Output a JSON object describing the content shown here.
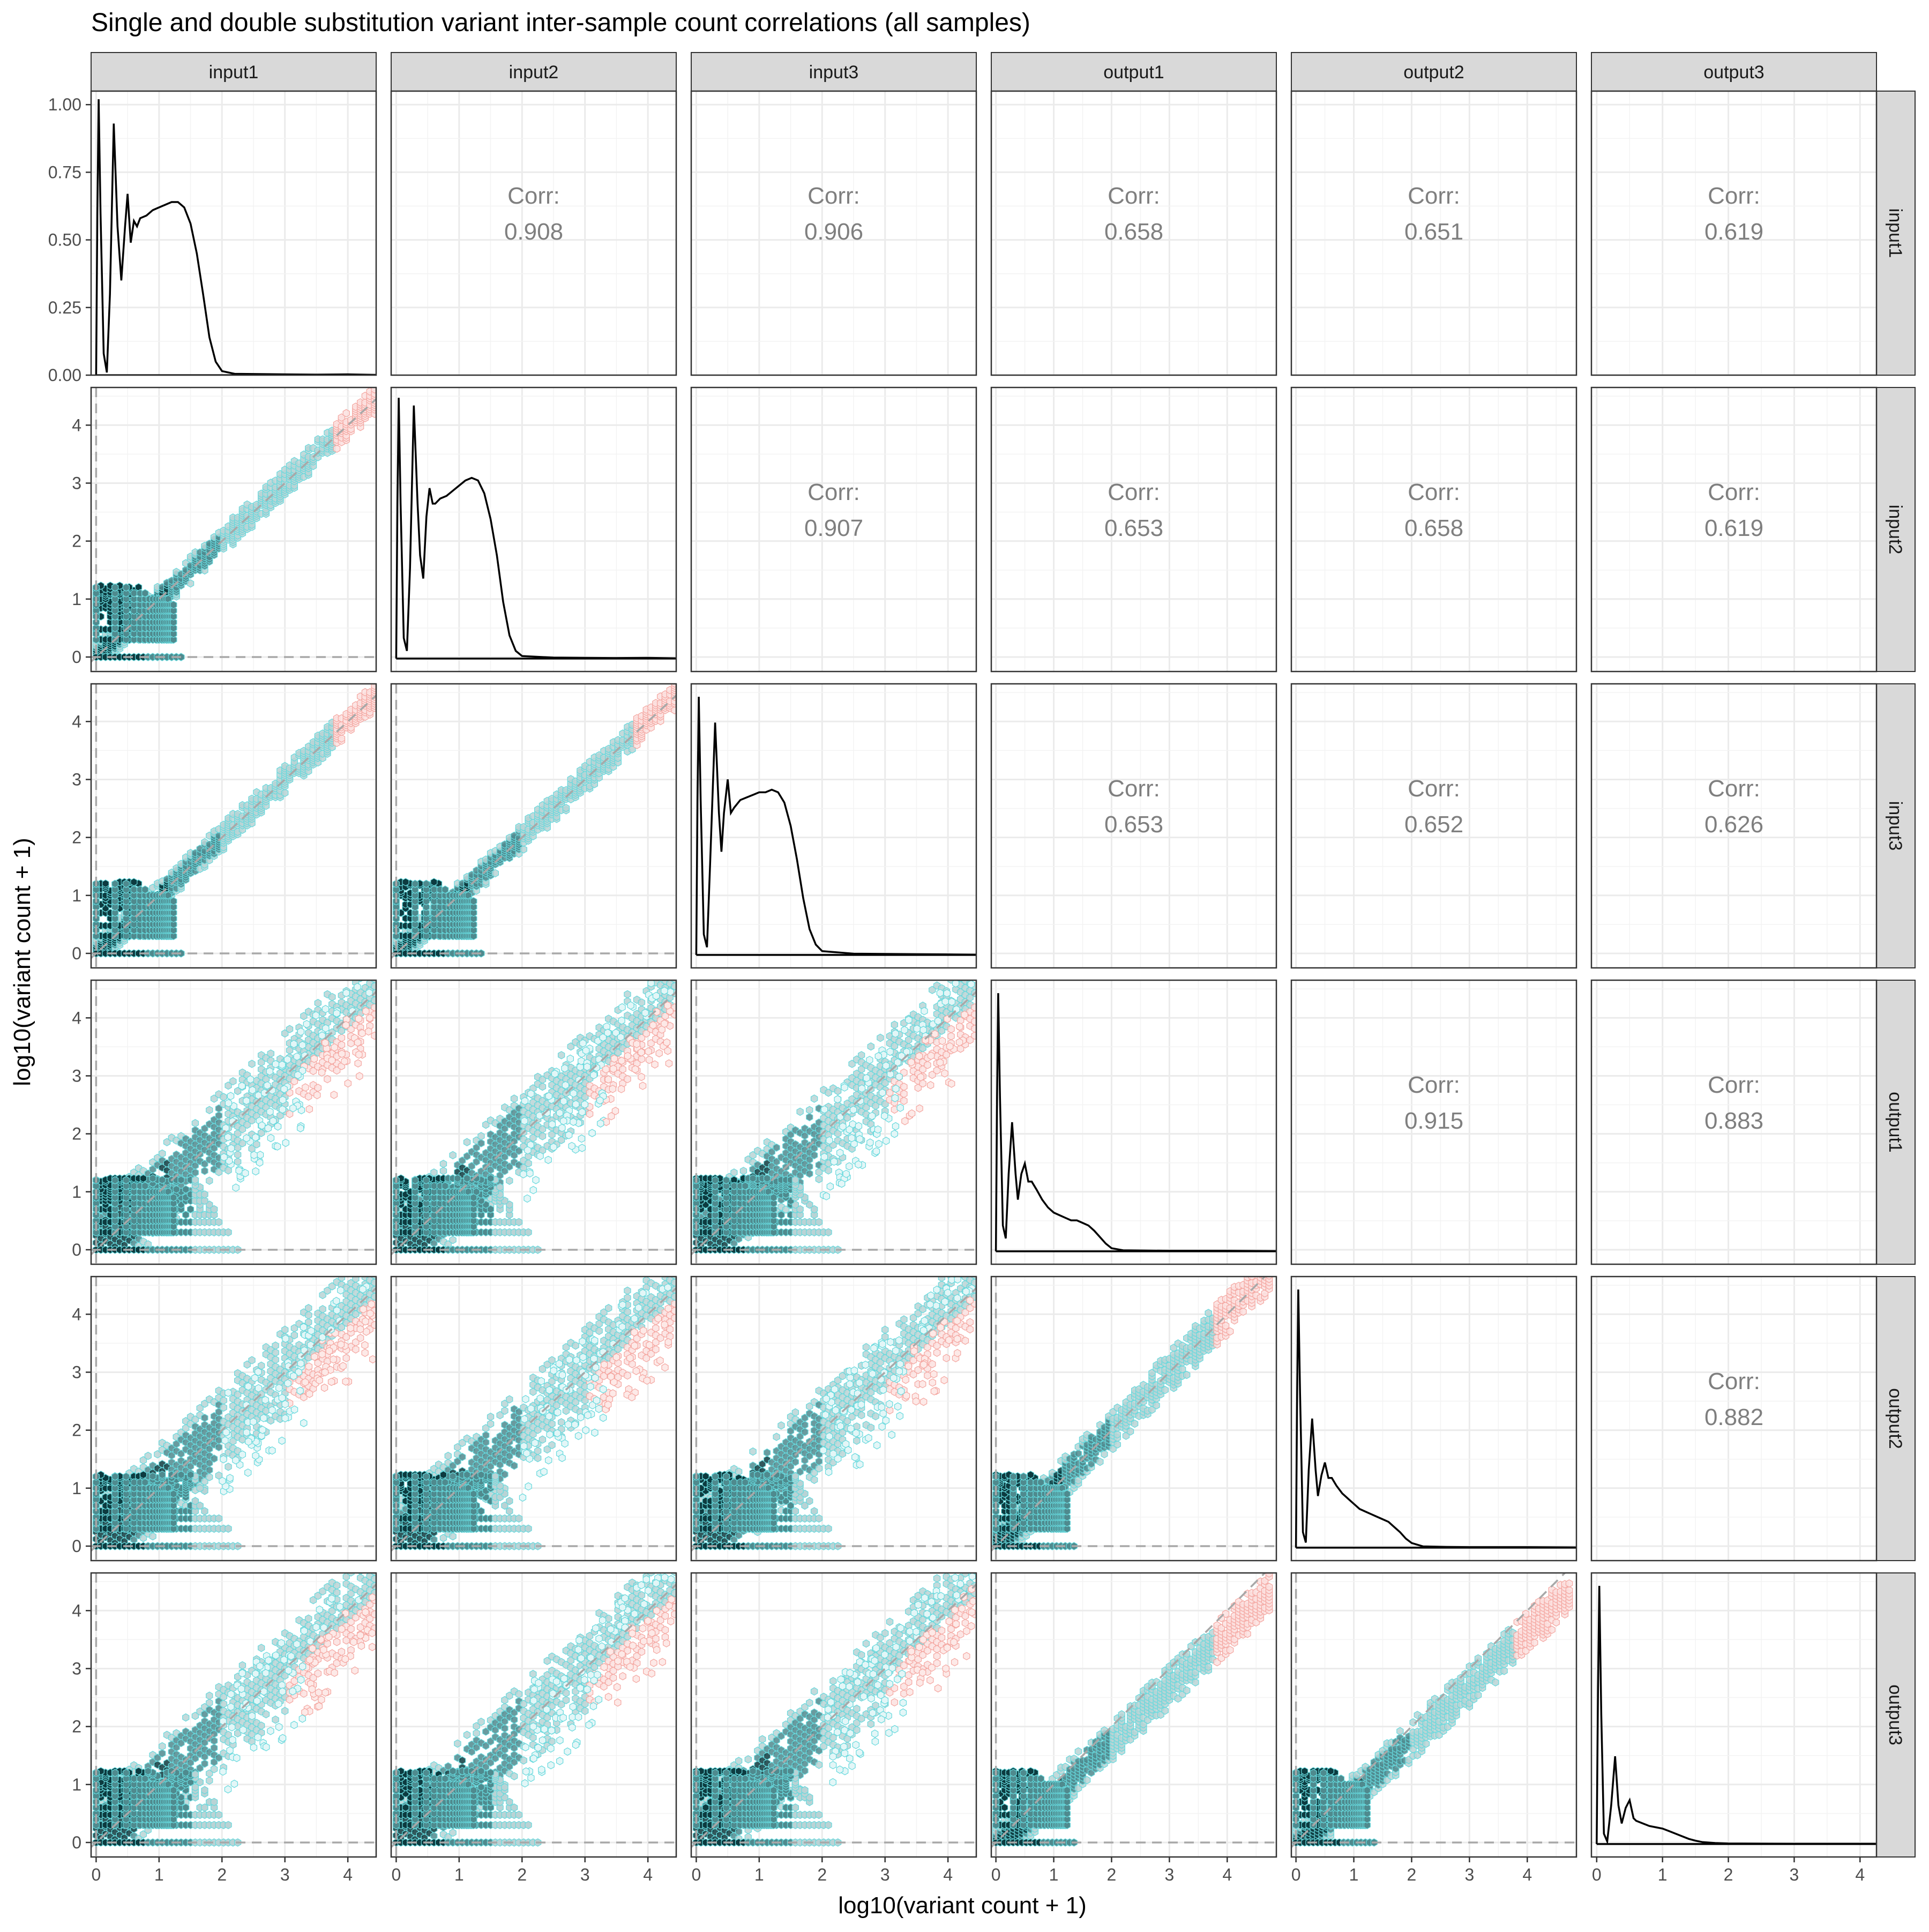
{
  "title": "Single and double substitution variant inter-sample count correlations (all samples)",
  "xlabel": "log10(variant count + 1)",
  "ylabel": "log10(variant count + 1)",
  "corr_label": "Corr:",
  "colors": {
    "hex_dark": "#0d3b40",
    "hex_mid": "#4f8a8e",
    "hex_light": "#b9d3d5",
    "hex_outline": "#66d9dd",
    "outlier": "#f4a6a0",
    "density": "#000000",
    "ref_line": "#a8a8a8",
    "strip_bg": "#d9d9d9",
    "grid": "#ebebeb",
    "corr_text": "#7f7f7f"
  },
  "chart_data": {
    "type": "scatter-matrix",
    "samples": [
      "input1",
      "input2",
      "input3",
      "output1",
      "output2",
      "output3"
    ],
    "density_ylim": [
      0,
      1.05
    ],
    "density_yticks": [
      "0.00",
      "0.25",
      "0.50",
      "0.75",
      "1.00"
    ],
    "scatter_ylim": [
      -0.25,
      4.65
    ],
    "scatter_yticks": [
      0,
      1,
      2,
      3,
      4
    ],
    "x_ticks": [
      0,
      1,
      2,
      3,
      4
    ],
    "x_max": [
      4.45,
      4.45,
      4.45,
      4.85,
      4.85,
      4.25
    ],
    "correlations": [
      {
        "row": "input1",
        "col": "input2",
        "value": "0.908"
      },
      {
        "row": "input1",
        "col": "input3",
        "value": "0.906"
      },
      {
        "row": "input1",
        "col": "output1",
        "value": "0.658"
      },
      {
        "row": "input1",
        "col": "output2",
        "value": "0.651"
      },
      {
        "row": "input1",
        "col": "output3",
        "value": "0.619"
      },
      {
        "row": "input2",
        "col": "input3",
        "value": "0.907"
      },
      {
        "row": "input2",
        "col": "output1",
        "value": "0.653"
      },
      {
        "row": "input2",
        "col": "output2",
        "value": "0.658"
      },
      {
        "row": "input2",
        "col": "output3",
        "value": "0.619"
      },
      {
        "row": "input3",
        "col": "output1",
        "value": "0.653"
      },
      {
        "row": "input3",
        "col": "output2",
        "value": "0.652"
      },
      {
        "row": "input3",
        "col": "output3",
        "value": "0.626"
      },
      {
        "row": "output1",
        "col": "output2",
        "value": "0.915"
      },
      {
        "row": "output1",
        "col": "output3",
        "value": "0.883"
      },
      {
        "row": "output2",
        "col": "output3",
        "value": "0.882"
      }
    ],
    "density_curves": {
      "input1": [
        [
          0,
          0.0
        ],
        [
          0.02,
          0.6
        ],
        [
          0.04,
          1.02
        ],
        [
          0.07,
          0.6
        ],
        [
          0.12,
          0.08
        ],
        [
          0.17,
          0.01
        ],
        [
          0.22,
          0.3
        ],
        [
          0.28,
          0.93
        ],
        [
          0.34,
          0.55
        ],
        [
          0.4,
          0.35
        ],
        [
          0.46,
          0.55
        ],
        [
          0.5,
          0.67
        ],
        [
          0.55,
          0.49
        ],
        [
          0.6,
          0.57
        ],
        [
          0.65,
          0.55
        ],
        [
          0.7,
          0.58
        ],
        [
          0.8,
          0.59
        ],
        [
          0.9,
          0.61
        ],
        [
          1.0,
          0.62
        ],
        [
          1.1,
          0.63
        ],
        [
          1.2,
          0.64
        ],
        [
          1.3,
          0.64
        ],
        [
          1.4,
          0.62
        ],
        [
          1.5,
          0.56
        ],
        [
          1.6,
          0.45
        ],
        [
          1.7,
          0.3
        ],
        [
          1.8,
          0.14
        ],
        [
          1.9,
          0.05
        ],
        [
          2.0,
          0.015
        ],
        [
          2.2,
          0.005
        ],
        [
          2.6,
          0.004
        ],
        [
          3.0,
          0.003
        ],
        [
          3.5,
          0.002
        ],
        [
          4.0,
          0.003
        ],
        [
          4.45,
          0.001
        ]
      ],
      "input2": [
        [
          0,
          0.0
        ],
        [
          0.02,
          0.6
        ],
        [
          0.04,
          1.01
        ],
        [
          0.07,
          0.6
        ],
        [
          0.12,
          0.08
        ],
        [
          0.17,
          0.03
        ],
        [
          0.22,
          0.35
        ],
        [
          0.28,
          0.98
        ],
        [
          0.34,
          0.6
        ],
        [
          0.38,
          0.4
        ],
        [
          0.43,
          0.31
        ],
        [
          0.48,
          0.55
        ],
        [
          0.53,
          0.66
        ],
        [
          0.58,
          0.6
        ],
        [
          0.62,
          0.6
        ],
        [
          0.7,
          0.62
        ],
        [
          0.8,
          0.63
        ],
        [
          0.9,
          0.65
        ],
        [
          1.0,
          0.67
        ],
        [
          1.1,
          0.69
        ],
        [
          1.2,
          0.7
        ],
        [
          1.3,
          0.69
        ],
        [
          1.4,
          0.64
        ],
        [
          1.5,
          0.54
        ],
        [
          1.6,
          0.4
        ],
        [
          1.7,
          0.22
        ],
        [
          1.8,
          0.09
        ],
        [
          1.9,
          0.03
        ],
        [
          2.0,
          0.01
        ],
        [
          2.5,
          0.004
        ],
        [
          3.0,
          0.003
        ],
        [
          3.5,
          0.002
        ],
        [
          4.0,
          0.003
        ],
        [
          4.45,
          0.001
        ]
      ],
      "input3": [
        [
          0,
          0.0
        ],
        [
          0.02,
          0.6
        ],
        [
          0.04,
          1.0
        ],
        [
          0.07,
          0.6
        ],
        [
          0.12,
          0.08
        ],
        [
          0.17,
          0.03
        ],
        [
          0.22,
          0.35
        ],
        [
          0.3,
          0.9
        ],
        [
          0.36,
          0.55
        ],
        [
          0.4,
          0.4
        ],
        [
          0.44,
          0.55
        ],
        [
          0.5,
          0.68
        ],
        [
          0.55,
          0.55
        ],
        [
          0.6,
          0.57
        ],
        [
          0.7,
          0.6
        ],
        [
          0.8,
          0.61
        ],
        [
          0.9,
          0.62
        ],
        [
          1.0,
          0.63
        ],
        [
          1.1,
          0.63
        ],
        [
          1.2,
          0.64
        ],
        [
          1.3,
          0.63
        ],
        [
          1.4,
          0.59
        ],
        [
          1.5,
          0.5
        ],
        [
          1.6,
          0.37
        ],
        [
          1.7,
          0.22
        ],
        [
          1.8,
          0.1
        ],
        [
          1.9,
          0.04
        ],
        [
          2.0,
          0.015
        ],
        [
          2.5,
          0.005
        ],
        [
          3.0,
          0.004
        ],
        [
          3.5,
          0.003
        ],
        [
          4.0,
          0.002
        ],
        [
          4.45,
          0.001
        ]
      ],
      "output1": [
        [
          0,
          0.0
        ],
        [
          0.02,
          0.6
        ],
        [
          0.04,
          1.0
        ],
        [
          0.07,
          0.6
        ],
        [
          0.12,
          0.1
        ],
        [
          0.17,
          0.05
        ],
        [
          0.22,
          0.3
        ],
        [
          0.28,
          0.5
        ],
        [
          0.34,
          0.3
        ],
        [
          0.38,
          0.2
        ],
        [
          0.44,
          0.3
        ],
        [
          0.5,
          0.34
        ],
        [
          0.56,
          0.27
        ],
        [
          0.62,
          0.27
        ],
        [
          0.7,
          0.24
        ],
        [
          0.8,
          0.2
        ],
        [
          0.9,
          0.17
        ],
        [
          1.0,
          0.15
        ],
        [
          1.1,
          0.14
        ],
        [
          1.2,
          0.13
        ],
        [
          1.3,
          0.12
        ],
        [
          1.4,
          0.12
        ],
        [
          1.5,
          0.11
        ],
        [
          1.6,
          0.1
        ],
        [
          1.7,
          0.08
        ],
        [
          1.8,
          0.055
        ],
        [
          1.9,
          0.03
        ],
        [
          2.0,
          0.012
        ],
        [
          2.2,
          0.004
        ],
        [
          2.6,
          0.003
        ],
        [
          3.0,
          0.002
        ],
        [
          4.0,
          0.002
        ],
        [
          4.85,
          0.001
        ]
      ],
      "output2": [
        [
          0,
          0.0
        ],
        [
          0.02,
          0.6
        ],
        [
          0.04,
          1.0
        ],
        [
          0.07,
          0.6
        ],
        [
          0.12,
          0.06
        ],
        [
          0.17,
          0.02
        ],
        [
          0.22,
          0.3
        ],
        [
          0.28,
          0.5
        ],
        [
          0.34,
          0.3
        ],
        [
          0.38,
          0.2
        ],
        [
          0.44,
          0.28
        ],
        [
          0.5,
          0.33
        ],
        [
          0.56,
          0.27
        ],
        [
          0.62,
          0.27
        ],
        [
          0.7,
          0.24
        ],
        [
          0.8,
          0.21
        ],
        [
          0.9,
          0.19
        ],
        [
          1.0,
          0.17
        ],
        [
          1.1,
          0.15
        ],
        [
          1.2,
          0.14
        ],
        [
          1.3,
          0.13
        ],
        [
          1.4,
          0.12
        ],
        [
          1.5,
          0.11
        ],
        [
          1.6,
          0.1
        ],
        [
          1.7,
          0.08
        ],
        [
          1.8,
          0.06
        ],
        [
          1.9,
          0.035
        ],
        [
          2.0,
          0.018
        ],
        [
          2.2,
          0.005
        ],
        [
          2.6,
          0.003
        ],
        [
          3.0,
          0.002
        ],
        [
          4.0,
          0.002
        ],
        [
          4.85,
          0.001
        ]
      ],
      "output3": [
        [
          0,
          0.0
        ],
        [
          0.02,
          0.6
        ],
        [
          0.04,
          1.0
        ],
        [
          0.07,
          0.5
        ],
        [
          0.11,
          0.04
        ],
        [
          0.16,
          0.01
        ],
        [
          0.22,
          0.15
        ],
        [
          0.28,
          0.34
        ],
        [
          0.33,
          0.15
        ],
        [
          0.38,
          0.08
        ],
        [
          0.44,
          0.14
        ],
        [
          0.5,
          0.17
        ],
        [
          0.56,
          0.1
        ],
        [
          0.6,
          0.09
        ],
        [
          0.7,
          0.08
        ],
        [
          0.8,
          0.07
        ],
        [
          0.9,
          0.065
        ],
        [
          1.0,
          0.06
        ],
        [
          1.1,
          0.05
        ],
        [
          1.2,
          0.04
        ],
        [
          1.3,
          0.03
        ],
        [
          1.4,
          0.02
        ],
        [
          1.5,
          0.013
        ],
        [
          1.6,
          0.008
        ],
        [
          1.8,
          0.004
        ],
        [
          2.0,
          0.002
        ],
        [
          3.0,
          0.001
        ],
        [
          4.25,
          0.001
        ]
      ]
    }
  }
}
